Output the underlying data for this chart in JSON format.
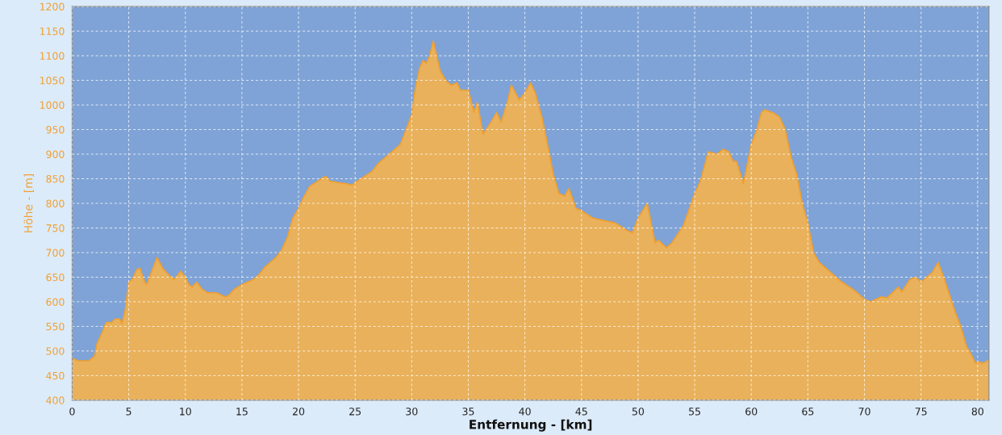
{
  "chart_data": {
    "type": "area",
    "xlabel": "Entfernung - [km]",
    "ylabel": "Höhe - [m]",
    "series": [
      {
        "color": "#f0a030",
        "x": [
          0,
          0.5,
          1,
          1.5,
          2,
          2.2,
          2.7,
          3,
          3.5,
          3.8,
          4.2,
          4.4,
          4.7,
          5,
          5.3,
          5.7,
          6,
          6.4,
          6.6,
          7,
          7.5,
          8,
          8.5,
          9,
          9.6,
          10,
          10.3,
          10.6,
          11,
          11.5,
          12,
          12.8,
          13.5,
          13.8,
          14.3,
          15,
          16,
          16.5,
          17,
          17.5,
          18,
          18.5,
          19,
          19.5,
          20,
          20.5,
          21,
          21.5,
          22,
          22.4,
          22.8,
          23.5,
          24.2,
          24.7,
          25.5,
          26.5,
          27,
          28,
          29,
          29.5,
          30,
          30.3,
          30.7,
          31,
          31.3,
          31.6,
          31.9,
          32.2,
          32.5,
          33,
          33.5,
          34,
          34.3,
          35,
          35.5,
          35.8,
          36.3,
          37,
          37.5,
          37.9,
          38.5,
          38.8,
          39.5,
          40,
          40.5,
          40.9,
          41.5,
          42,
          42.5,
          43,
          43.5,
          43.9,
          44.5,
          45,
          46,
          47,
          48,
          49,
          49.5,
          50,
          50.8,
          51.5,
          51.8,
          52.5,
          53,
          54,
          55,
          55.5,
          56.2,
          57,
          57.5,
          58,
          58.4,
          58.7,
          59.3,
          60,
          60.5,
          60.9,
          61.2,
          62,
          62.5,
          63,
          63.5,
          64,
          64.5,
          65,
          65.5,
          66,
          67,
          68,
          69,
          70,
          70.5,
          71.5,
          72,
          73,
          73.3,
          74,
          74.5,
          75,
          76,
          76.5,
          77,
          77.5,
          78,
          78.5,
          79,
          79.5,
          79.8,
          80,
          80.5,
          81
        ],
        "values": [
          485,
          480,
          480,
          480,
          490,
          515,
          540,
          558,
          558,
          565,
          565,
          555,
          585,
          640,
          645,
          665,
          668,
          640,
          635,
          660,
          690,
          668,
          655,
          645,
          662,
          650,
          635,
          630,
          640,
          625,
          618,
          618,
          610,
          612,
          625,
          635,
          645,
          655,
          670,
          680,
          690,
          705,
          730,
          770,
          790,
          815,
          835,
          842,
          850,
          855,
          845,
          842,
          840,
          837,
          850,
          865,
          880,
          900,
          920,
          950,
          980,
          1030,
          1075,
          1090,
          1085,
          1100,
          1130,
          1100,
          1070,
          1050,
          1040,
          1045,
          1030,
          1030,
          985,
          1005,
          940,
          965,
          985,
          965,
          1010,
          1040,
          1010,
          1025,
          1045,
          1025,
          975,
          920,
          860,
          820,
          815,
          830,
          790,
          785,
          770,
          765,
          760,
          745,
          740,
          770,
          800,
          720,
          725,
          710,
          720,
          755,
          820,
          845,
          905,
          900,
          910,
          905,
          885,
          885,
          840,
          920,
          950,
          985,
          990,
          983,
          975,
          950,
          895,
          860,
          800,
          760,
          700,
          680,
          660,
          640,
          625,
          605,
          600,
          610,
          608,
          630,
          620,
          645,
          650,
          640,
          660,
          680,
          650,
          615,
          580,
          550,
          510,
          490,
          475,
          478,
          475,
          482
        ]
      }
    ],
    "xlim": [
      0,
      81
    ],
    "ylim": [
      400,
      1200
    ],
    "xticks": [
      0,
      5,
      10,
      15,
      20,
      25,
      30,
      35,
      40,
      45,
      50,
      55,
      60,
      65,
      70,
      75,
      80
    ],
    "yticks": [
      400,
      450,
      500,
      550,
      600,
      650,
      700,
      750,
      800,
      850,
      900,
      950,
      1000,
      1050,
      1100,
      1150,
      1200
    ],
    "grid": true
  }
}
